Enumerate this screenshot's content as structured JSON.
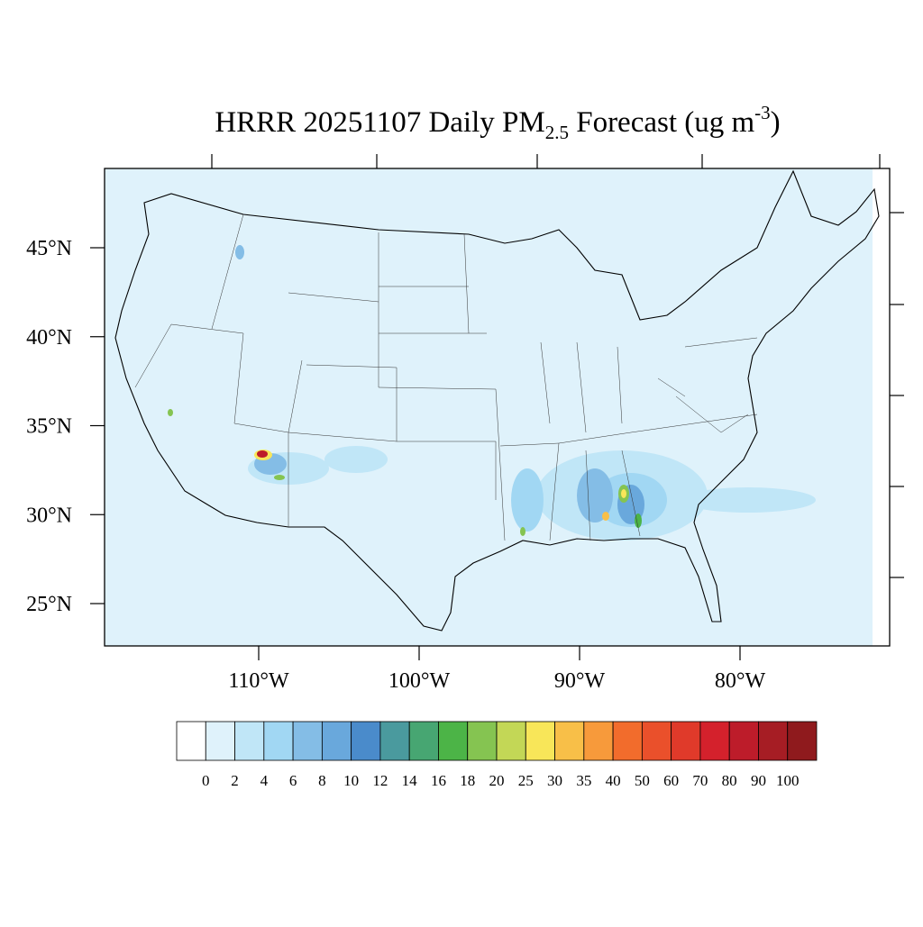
{
  "title": {
    "main": "HRRR 20251107 Daily PM",
    "sub": "2.5",
    "mid": " Forecast (ug m",
    "sup": "-3",
    "end": ")"
  },
  "lat_labels": [
    {
      "value": 45,
      "label": "45°N"
    },
    {
      "value": 40,
      "label": "40°N"
    },
    {
      "value": 35,
      "label": "35°N"
    },
    {
      "value": 30,
      "label": "30°N"
    },
    {
      "value": 25,
      "label": "25°N"
    }
  ],
  "lon_labels": [
    {
      "value": 110,
      "label": "110°W"
    },
    {
      "value": 100,
      "label": "100°W"
    },
    {
      "value": 90,
      "label": "90°W"
    },
    {
      "value": 80,
      "label": "80°W"
    }
  ],
  "colorbar": {
    "colors": [
      "#ffffff",
      "#dff2fb",
      "#c0e6f7",
      "#a1d7f3",
      "#84bde6",
      "#69a8dc",
      "#4a8bcb",
      "#4a9a9e",
      "#47a672",
      "#4cb447",
      "#85c451",
      "#c3d756",
      "#f8e659",
      "#f8bf48",
      "#f79a3b",
      "#f26c2c",
      "#ea502b",
      "#e03a2a",
      "#d4212c",
      "#bd1c2a",
      "#a61d24",
      "#8f1a1d"
    ],
    "levels": [
      0,
      2,
      4,
      6,
      8,
      10,
      12,
      14,
      16,
      18,
      20,
      25,
      30,
      35,
      40,
      50,
      60,
      70,
      80,
      90,
      100
    ]
  }
}
